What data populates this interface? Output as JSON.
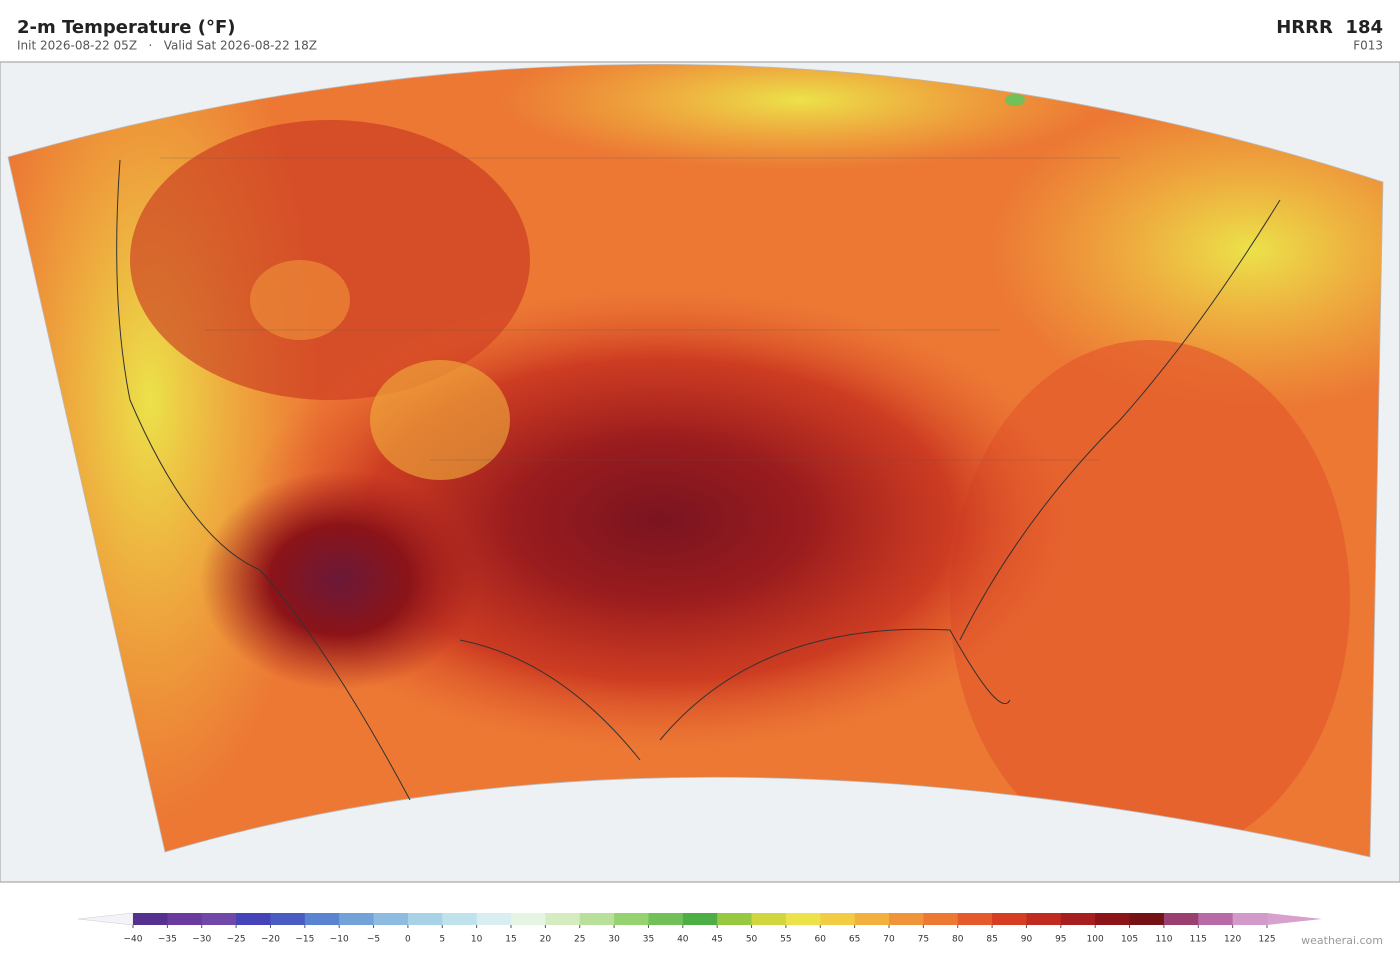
{
  "header": {
    "title": "2-m Temperature  (°F)",
    "subtitle": "Init 2026-08-22 05Z   ·   Valid Sat 2026-08-22 18Z",
    "model": "HRRR  184",
    "forecast_hour": "F013"
  },
  "colorbar": {
    "ticks": [
      {
        "value": -40,
        "label": "−40"
      },
      {
        "value": -35,
        "label": "−35"
      },
      {
        "value": -30,
        "label": "−30"
      },
      {
        "value": -25,
        "label": "−25"
      },
      {
        "value": -20,
        "label": "−20"
      },
      {
        "value": -15,
        "label": "−15"
      },
      {
        "value": -10,
        "label": "−10"
      },
      {
        "value": -5,
        "label": "−5"
      },
      0,
      5,
      10,
      15,
      20,
      25,
      30,
      35,
      40,
      45,
      50,
      55,
      60,
      65,
      70,
      75,
      80,
      85,
      90,
      95,
      100,
      105,
      110,
      115,
      120,
      125
    ],
    "colors": [
      "#56308f",
      "#6a3a9e",
      "#7048a8",
      "#4444b8",
      "#4a5cc4",
      "#5a84d0",
      "#72a2d8",
      "#8ebce0",
      "#a8d2e6",
      "#c0e2ec",
      "#d8eef0",
      "#e6f4e4",
      "#d4ecc0",
      "#b8e09a",
      "#96d272",
      "#72c05a",
      "#4cae44",
      "#98c840",
      "#cfd640",
      "#ece24a",
      "#f2cc44",
      "#f2b03e",
      "#f0943a",
      "#ec7834",
      "#e45a2c",
      "#d63e24",
      "#c02a20",
      "#a61e1e",
      "#8c1418",
      "#741216",
      "#9a4070",
      "#b86aa6",
      "#d29ac8"
    ],
    "under_color": "#f4f4f8",
    "over_color": "#d8a0cc"
  },
  "footer": {
    "credit": "weatherai.com"
  }
}
